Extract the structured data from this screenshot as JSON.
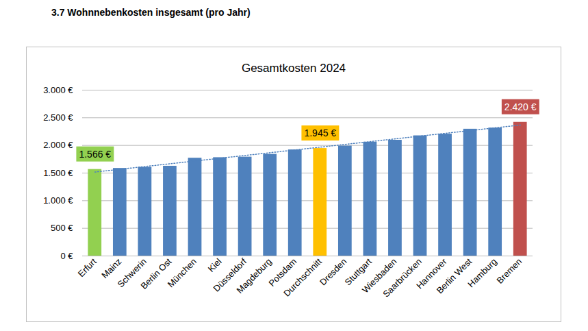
{
  "heading": "3.7 Wohnnebenkosten insgesamt (pro Jahr)",
  "chart_data": {
    "type": "bar",
    "title": "Gesamtkosten 2024",
    "categories": [
      "Erfurt",
      "Mainz",
      "Schwerin",
      "Berlin Ost",
      "München",
      "Kiel",
      "Düsseldorf",
      "Magdeburg",
      "Potsdam",
      "Durchschnitt",
      "Dresden",
      "Stuttgart",
      "Wiesbaden",
      "Saarbrücken",
      "Hannover",
      "Berlin West",
      "Hamburg",
      "Bremen"
    ],
    "values": [
      1566,
      1585,
      1605,
      1625,
      1770,
      1780,
      1790,
      1840,
      1920,
      1945,
      1990,
      2060,
      2095,
      2175,
      2205,
      2295,
      2315,
      2420
    ],
    "value_labels": [
      "1.566 €",
      null,
      null,
      null,
      null,
      null,
      null,
      null,
      null,
      "1.945 €",
      null,
      null,
      null,
      null,
      null,
      null,
      null,
      "2.420 €"
    ],
    "data_labels": true,
    "colors": [
      "#92d050",
      "#4f81bd",
      "#4f81bd",
      "#4f81bd",
      "#4f81bd",
      "#4f81bd",
      "#4f81bd",
      "#4f81bd",
      "#4f81bd",
      "#ffc000",
      "#4f81bd",
      "#4f81bd",
      "#4f81bd",
      "#4f81bd",
      "#4f81bd",
      "#4f81bd",
      "#4f81bd",
      "#c0504d"
    ],
    "ylim": [
      0,
      3000
    ],
    "yticks": [
      {
        "value": 0,
        "label": "0 €"
      },
      {
        "value": 500,
        "label": "500 €"
      },
      {
        "value": 1000,
        "label": "1.000 €"
      },
      {
        "value": 1500,
        "label": "1.500 €"
      },
      {
        "value": 2000,
        "label": "2.000 €"
      },
      {
        "value": 2500,
        "label": "2.500 €"
      },
      {
        "value": 3000,
        "label": "3.000 €"
      }
    ],
    "grid": true
  }
}
